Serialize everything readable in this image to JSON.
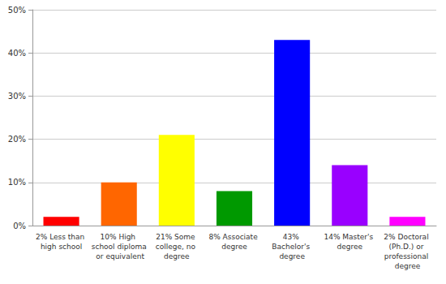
{
  "chart_data": {
    "type": "bar",
    "categories": [
      "2% Less than high school",
      "10% High school diploma or equivalent",
      "21% Some college, no degree",
      "8% Associate degree",
      "43% Bachelor's degree",
      "14% Master's degree",
      "2% Doctoral (Ph.D.) or professional degree"
    ],
    "values": [
      2,
      10,
      21,
      8,
      43,
      14,
      2
    ],
    "colors": [
      "#ff0000",
      "#ff6600",
      "#ffff00",
      "#009900",
      "#0000ff",
      "#9900ff",
      "#ff00ff"
    ],
    "ylim": [
      0,
      50
    ],
    "yticks": [
      {
        "value": 0,
        "label": "0%"
      },
      {
        "value": 10,
        "label": "10%"
      },
      {
        "value": 20,
        "label": "20%"
      },
      {
        "value": 30,
        "label": "30%"
      },
      {
        "value": 40,
        "label": "40%"
      },
      {
        "value": 50,
        "label": "50%"
      }
    ],
    "grid": true
  }
}
